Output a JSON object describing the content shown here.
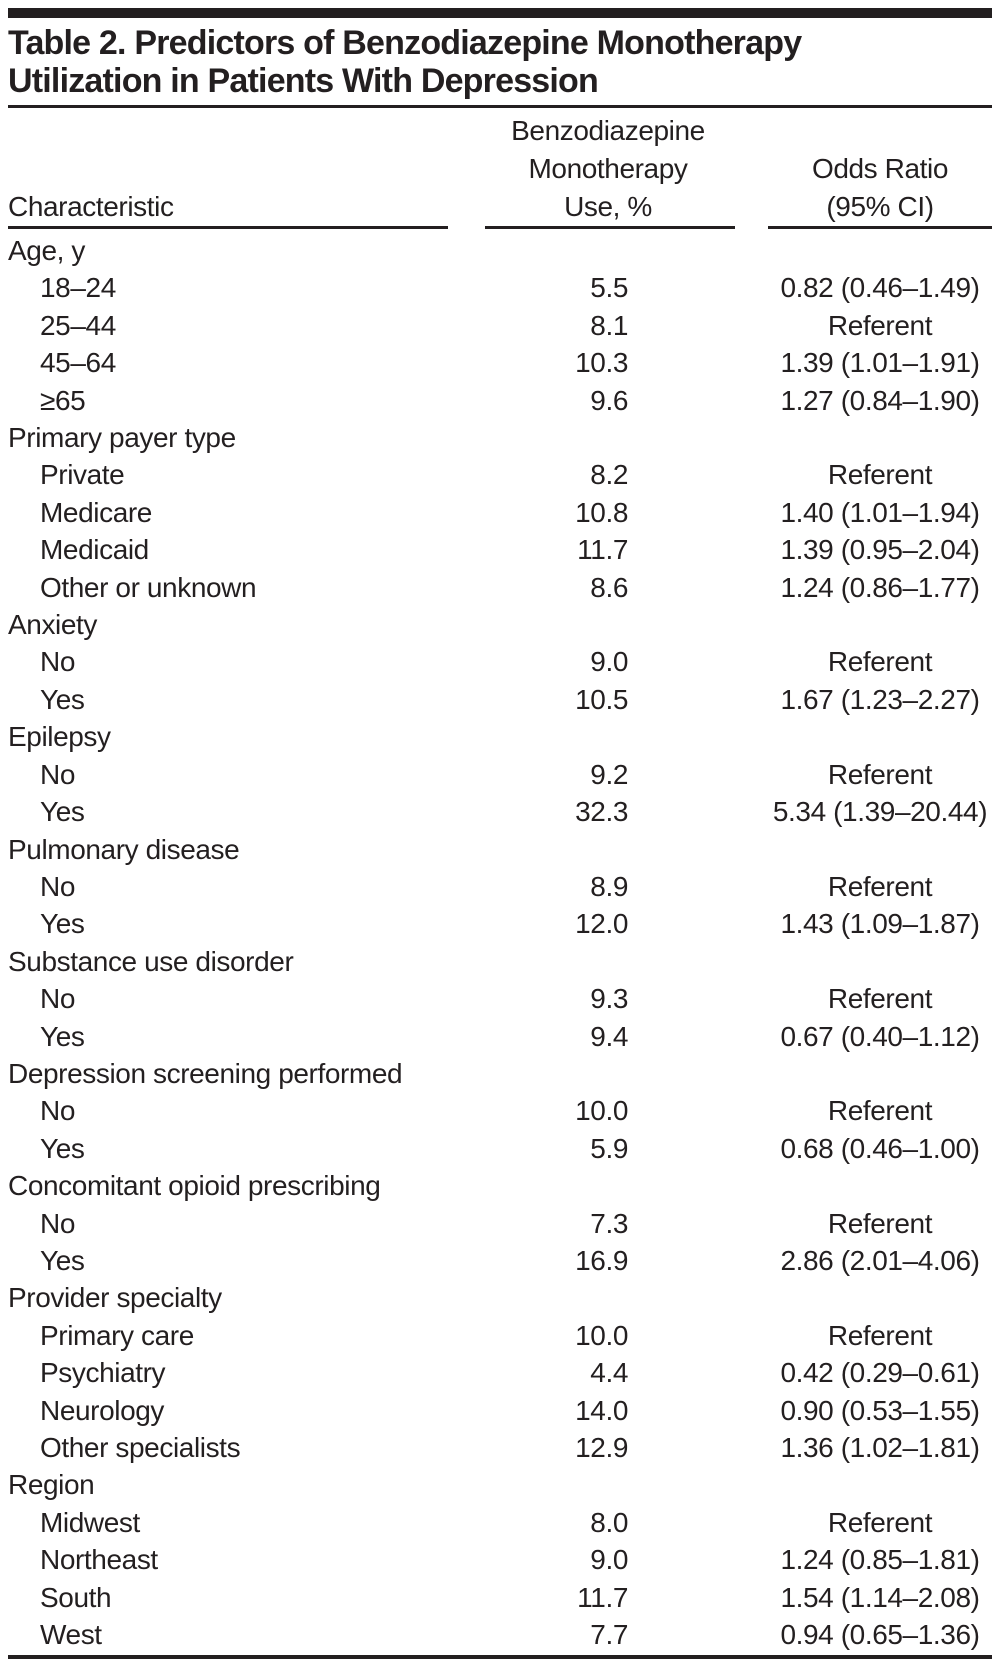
{
  "colors": {
    "text": "#231f20",
    "rule": "#231f20",
    "background": "#ffffff"
  },
  "table": {
    "title_lines": [
      "Table 2. Predictors of Benzodiazepine Monotherapy",
      "Utilization in Patients With Depression"
    ],
    "columns": {
      "characteristic": "Characteristic",
      "use_lines": [
        "Benzodiazepine",
        "Monotherapy",
        "Use, %"
      ],
      "odds_lines": [
        "Odds Ratio",
        "(95% CI)"
      ]
    },
    "rows": [
      {
        "label": "Age, y",
        "indent": false,
        "use": "",
        "or": ""
      },
      {
        "label": "18–24",
        "indent": true,
        "use": "5.5",
        "or": "0.82 (0.46–1.49)"
      },
      {
        "label": "25–44",
        "indent": true,
        "use": "8.1",
        "or": "Referent"
      },
      {
        "label": "45–64",
        "indent": true,
        "use": "10.3",
        "or": "1.39 (1.01–1.91)"
      },
      {
        "label": "≥65",
        "indent": true,
        "use": "9.6",
        "or": "1.27 (0.84–1.90)"
      },
      {
        "label": "Primary payer type",
        "indent": false,
        "use": "",
        "or": ""
      },
      {
        "label": "Private",
        "indent": true,
        "use": "8.2",
        "or": "Referent"
      },
      {
        "label": "Medicare",
        "indent": true,
        "use": "10.8",
        "or": "1.40 (1.01–1.94)"
      },
      {
        "label": "Medicaid",
        "indent": true,
        "use": "11.7",
        "or": "1.39 (0.95–2.04)"
      },
      {
        "label": "Other or unknown",
        "indent": true,
        "use": "8.6",
        "or": "1.24 (0.86–1.77)"
      },
      {
        "label": "Anxiety",
        "indent": false,
        "use": "",
        "or": ""
      },
      {
        "label": "No",
        "indent": true,
        "use": "9.0",
        "or": "Referent"
      },
      {
        "label": "Yes",
        "indent": true,
        "use": "10.5",
        "or": "1.67 (1.23–2.27)"
      },
      {
        "label": "Epilepsy",
        "indent": false,
        "use": "",
        "or": ""
      },
      {
        "label": "No",
        "indent": true,
        "use": "9.2",
        "or": "Referent"
      },
      {
        "label": "Yes",
        "indent": true,
        "use": "32.3",
        "or": "5.34 (1.39–20.44)"
      },
      {
        "label": "Pulmonary disease",
        "indent": false,
        "use": "",
        "or": ""
      },
      {
        "label": "No",
        "indent": true,
        "use": "8.9",
        "or": "Referent"
      },
      {
        "label": "Yes",
        "indent": true,
        "use": "12.0",
        "or": "1.43 (1.09–1.87)"
      },
      {
        "label": "Substance use disorder",
        "indent": false,
        "use": "",
        "or": ""
      },
      {
        "label": "No",
        "indent": true,
        "use": "9.3",
        "or": "Referent"
      },
      {
        "label": "Yes",
        "indent": true,
        "use": "9.4",
        "or": "0.67 (0.40–1.12)"
      },
      {
        "label": "Depression screening performed",
        "indent": false,
        "use": "",
        "or": ""
      },
      {
        "label": "No",
        "indent": true,
        "use": "10.0",
        "or": "Referent"
      },
      {
        "label": "Yes",
        "indent": true,
        "use": "5.9",
        "or": "0.68 (0.46–1.00)"
      },
      {
        "label": "Concomitant opioid prescribing",
        "indent": false,
        "use": "",
        "or": ""
      },
      {
        "label": "No",
        "indent": true,
        "use": "7.3",
        "or": "Referent"
      },
      {
        "label": "Yes",
        "indent": true,
        "use": "16.9",
        "or": "2.86 (2.01–4.06)"
      },
      {
        "label": "Provider specialty",
        "indent": false,
        "use": "",
        "or": ""
      },
      {
        "label": "Primary care",
        "indent": true,
        "use": "10.0",
        "or": "Referent"
      },
      {
        "label": "Psychiatry",
        "indent": true,
        "use": "4.4",
        "or": "0.42 (0.29–0.61)"
      },
      {
        "label": "Neurology",
        "indent": true,
        "use": "14.0",
        "or": "0.90 (0.53–1.55)"
      },
      {
        "label": "Other specialists",
        "indent": true,
        "use": "12.9",
        "or": "1.36 (1.02–1.81)"
      },
      {
        "label": "Region",
        "indent": false,
        "use": "",
        "or": ""
      },
      {
        "label": "Midwest",
        "indent": true,
        "use": "8.0",
        "or": "Referent"
      },
      {
        "label": "Northeast",
        "indent": true,
        "use": "9.0",
        "or": "1.24 (0.85–1.81)"
      },
      {
        "label": "South",
        "indent": true,
        "use": "11.7",
        "or": "1.54 (1.14–2.08)"
      },
      {
        "label": "West",
        "indent": true,
        "use": "7.7",
        "or": "0.94 (0.65–1.36)"
      }
    ]
  }
}
